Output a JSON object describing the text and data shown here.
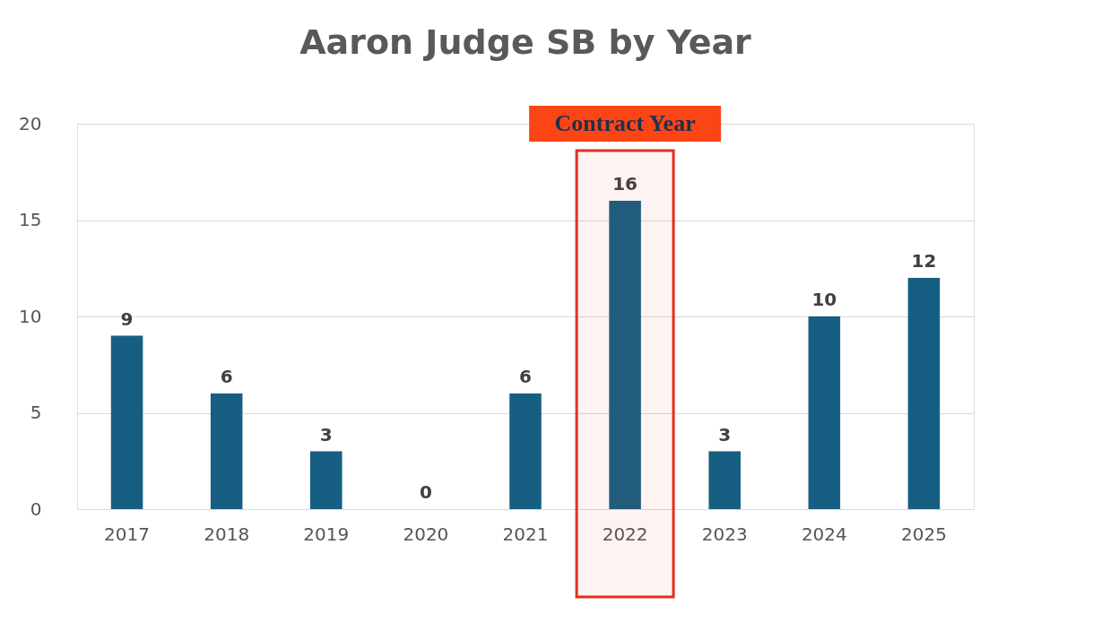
{
  "chart_data": {
    "type": "bar",
    "title": "Aaron Judge SB by Year",
    "categories": [
      "2017",
      "2018",
      "2019",
      "2020",
      "2021",
      "2022",
      "2023",
      "2024",
      "2025"
    ],
    "values": [
      9,
      6,
      3,
      0,
      6,
      16,
      3,
      10,
      12
    ],
    "color": "#175f82",
    "ylim": [
      0,
      20
    ],
    "yticks": [
      0,
      5,
      10,
      15,
      20
    ],
    "grid": "y",
    "data_labels": true,
    "bands": [
      {
        "axis": "x",
        "from": "2022",
        "to": "2022",
        "label": "Contract Year",
        "color": "#e0301e"
      }
    ]
  }
}
